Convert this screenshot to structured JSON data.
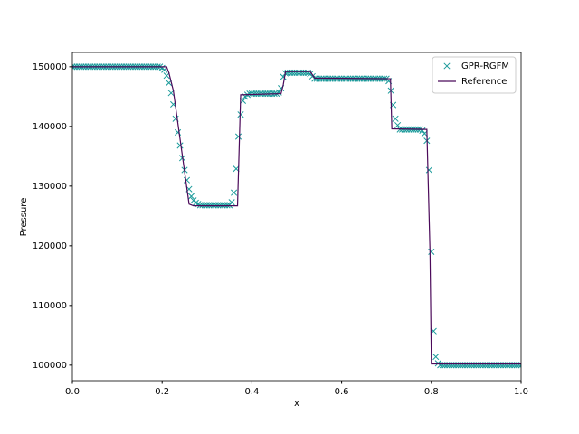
{
  "chart_data": {
    "type": "line",
    "xlabel": "x",
    "ylabel": "Pressure",
    "xlim": [
      0,
      1
    ],
    "ylim": [
      97400,
      152400
    ],
    "xticks": [
      {
        "value": 0,
        "label": "0.0"
      },
      0.2,
      0.4,
      0.6,
      0.8,
      {
        "value": 1,
        "label": "1.0"
      }
    ],
    "yticks": [
      100000,
      110000,
      120000,
      130000,
      140000,
      150000
    ],
    "legend": "upper right",
    "series": [
      {
        "name": "GPR-RGFM",
        "color": "#1a9a9a",
        "marker": "x",
        "x": [
          0,
          0.005,
          0.01,
          0.015,
          0.02,
          0.025,
          0.03,
          0.035,
          0.04,
          0.045,
          0.05,
          0.055,
          0.06,
          0.065,
          0.07,
          0.075,
          0.08,
          0.085,
          0.09,
          0.095,
          0.1,
          0.105,
          0.11,
          0.115,
          0.12,
          0.125,
          0.13,
          0.135,
          0.14,
          0.145,
          0.15,
          0.155,
          0.16,
          0.165,
          0.17,
          0.175,
          0.18,
          0.185,
          0.19,
          0.195,
          0.2,
          0.205,
          0.21,
          0.215,
          0.22,
          0.225,
          0.23,
          0.235,
          0.24,
          0.245,
          0.25,
          0.255,
          0.26,
          0.265,
          0.27,
          0.275,
          0.28,
          0.285,
          0.29,
          0.295,
          0.3,
          0.305,
          0.31,
          0.315,
          0.32,
          0.325,
          0.33,
          0.335,
          0.34,
          0.345,
          0.35,
          0.355,
          0.36,
          0.365,
          0.37,
          0.375,
          0.38,
          0.385,
          0.39,
          0.395,
          0.4,
          0.405,
          0.41,
          0.415,
          0.42,
          0.425,
          0.43,
          0.435,
          0.44,
          0.445,
          0.45,
          0.455,
          0.46,
          0.465,
          0.47,
          0.475,
          0.48,
          0.485,
          0.49,
          0.495,
          0.5,
          0.505,
          0.51,
          0.515,
          0.52,
          0.525,
          0.53,
          0.535,
          0.54,
          0.545,
          0.55,
          0.555,
          0.56,
          0.565,
          0.57,
          0.575,
          0.58,
          0.585,
          0.59,
          0.595,
          0.6,
          0.605,
          0.61,
          0.615,
          0.62,
          0.625,
          0.63,
          0.635,
          0.64,
          0.645,
          0.65,
          0.655,
          0.66,
          0.665,
          0.67,
          0.675,
          0.68,
          0.685,
          0.69,
          0.695,
          0.7,
          0.705,
          0.71,
          0.715,
          0.72,
          0.725,
          0.73,
          0.735,
          0.74,
          0.745,
          0.75,
          0.755,
          0.76,
          0.765,
          0.77,
          0.775,
          0.78,
          0.785,
          0.79,
          0.795,
          0.8,
          0.805,
          0.81,
          0.815,
          0.82,
          0.825,
          0.83,
          0.835,
          0.84,
          0.845,
          0.85,
          0.855,
          0.86,
          0.865,
          0.87,
          0.875,
          0.88,
          0.885,
          0.89,
          0.895,
          0.9,
          0.905,
          0.91,
          0.915,
          0.92,
          0.925,
          0.93,
          0.935,
          0.94,
          0.945,
          0.95,
          0.955,
          0.96,
          0.965,
          0.97,
          0.975,
          0.98,
          0.985,
          0.99,
          0.995,
          1
        ],
        "values": [
          150000,
          150000,
          150000,
          150000,
          150000,
          150000,
          150000,
          150000,
          150000,
          150000,
          150000,
          150000,
          150000,
          150000,
          150000,
          150000,
          150000,
          150000,
          150000,
          150000,
          150000,
          150000,
          150000,
          150000,
          150000,
          150000,
          150000,
          150000,
          150000,
          150000,
          150000,
          150000,
          150000,
          150000,
          150000,
          150000,
          150000,
          150000,
          150000,
          150000,
          149800,
          149500,
          148500,
          147300,
          145600,
          143700,
          141300,
          139000,
          136800,
          134700,
          132700,
          131000,
          129500,
          128300,
          127600,
          127200,
          127000,
          126800,
          126800,
          126800,
          126800,
          126800,
          126800,
          126800,
          126800,
          126800,
          126800,
          126800,
          126800,
          126800,
          126800,
          127300,
          128900,
          132900,
          138300,
          142000,
          144300,
          145000,
          145300,
          145500,
          145500,
          145500,
          145500,
          145500,
          145500,
          145500,
          145500,
          145500,
          145500,
          145500,
          145500,
          145500,
          145700,
          146400,
          148300,
          148900,
          149000,
          149000,
          149000,
          149000,
          149000,
          149000,
          149000,
          149000,
          149000,
          149000,
          148800,
          148400,
          148000,
          148000,
          148000,
          148000,
          148000,
          148000,
          148000,
          148000,
          148000,
          148000,
          148000,
          148000,
          148000,
          148000,
          148000,
          148000,
          148000,
          148000,
          148000,
          148000,
          148000,
          148000,
          148000,
          148000,
          148000,
          148000,
          148000,
          148000,
          148000,
          148000,
          148000,
          148000,
          148000,
          147600,
          146000,
          143600,
          141300,
          140200,
          139500,
          139500,
          139500,
          139500,
          139500,
          139500,
          139500,
          139500,
          139500,
          139500,
          139300,
          138800,
          137600,
          132700,
          119000,
          105700,
          101400,
          100300,
          100000,
          100000,
          100000,
          100000,
          100000,
          100000,
          100000,
          100000,
          100000,
          100000,
          100000,
          100000,
          100000,
          100000,
          100000,
          100000,
          100000,
          100000,
          100000,
          100000,
          100000,
          100000,
          100000,
          100000,
          100000,
          100000,
          100000,
          100000,
          100000,
          100000,
          100000,
          100000,
          100000,
          100000,
          100000,
          100000,
          100000
        ]
      },
      {
        "name": "Reference",
        "color": "#4b0a5a",
        "marker": "line",
        "x": [
          0,
          0.21,
          0.215,
          0.225,
          0.26,
          0.27,
          0.368,
          0.375,
          0.465,
          0.47,
          0.475,
          0.53,
          0.54,
          0.709,
          0.712,
          0.79,
          0.797,
          0.8,
          1
        ],
        "values": [
          150000,
          150000,
          149000,
          146000,
          127000,
          126700,
          126700,
          145300,
          145500,
          147000,
          149200,
          149200,
          148100,
          148000,
          139600,
          139500,
          119000,
          100200,
          100200
        ]
      }
    ]
  }
}
